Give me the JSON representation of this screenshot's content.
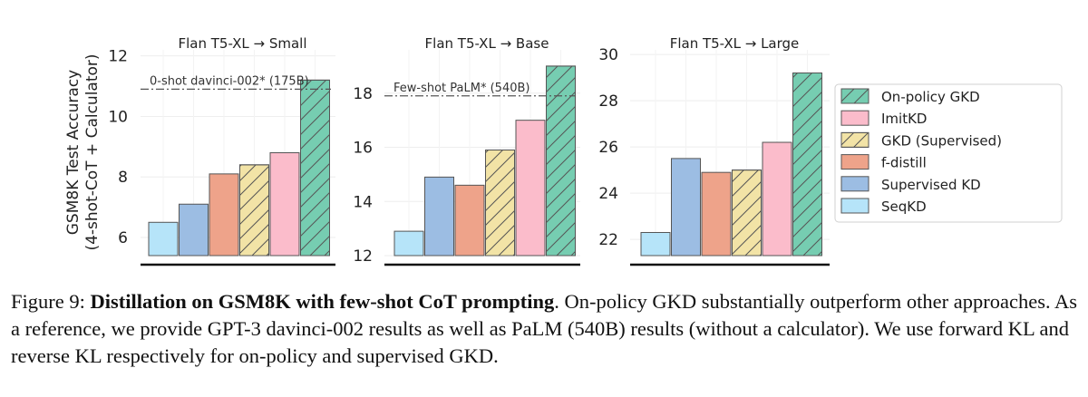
{
  "chart_data": [
    {
      "type": "bar",
      "title": "Flan T5-XL → Small",
      "ylabel": "GSM8K Test Accuracy\n(4-shot-CoT + Calculator)",
      "ylim": [
        5.4,
        12.2
      ],
      "yticks": [
        6,
        8,
        10,
        12
      ],
      "categories": [
        "SeqKD",
        "Supervised KD",
        "f-distill",
        "GKD (Supervised)",
        "ImitKD",
        "On-policy GKD"
      ],
      "values": [
        6.5,
        7.1,
        8.1,
        8.4,
        8.8,
        11.2
      ],
      "reference": {
        "label": "0-shot davinci-002* (175B)",
        "value": 10.9
      }
    },
    {
      "type": "bar",
      "title": "Flan T5-XL → Base",
      "ylabel": "",
      "ylim": [
        12.0,
        19.6
      ],
      "yticks": [
        12,
        14,
        16,
        18
      ],
      "categories": [
        "SeqKD",
        "Supervised KD",
        "f-distill",
        "GKD (Supervised)",
        "ImitKD",
        "On-policy GKD"
      ],
      "values": [
        12.9,
        14.9,
        14.6,
        15.9,
        17.0,
        19.0
      ],
      "reference": {
        "label": "Few-shot PaLM* (540B)",
        "value": 17.9
      }
    },
    {
      "type": "bar",
      "title": "Flan T5-XL → Large",
      "ylabel": "",
      "ylim": [
        21.3,
        30.2
      ],
      "yticks": [
        22,
        24,
        26,
        28,
        30
      ],
      "categories": [
        "SeqKD",
        "Supervised KD",
        "f-distill",
        "GKD (Supervised)",
        "ImitKD",
        "On-policy GKD"
      ],
      "values": [
        22.3,
        25.5,
        24.9,
        25.0,
        26.2,
        29.2
      ],
      "reference": null
    }
  ],
  "legend": [
    {
      "label": "On-policy GKD",
      "color": "#76cdb1",
      "hatch": true
    },
    {
      "label": "ImitKD",
      "color": "#fbbccb",
      "hatch": false
    },
    {
      "label": "GKD (Supervised)",
      "color": "#f2e3a6",
      "hatch": true
    },
    {
      "label": "f-distill",
      "color": "#eea38a",
      "hatch": false
    },
    {
      "label": "Supervised KD",
      "color": "#9cbde3",
      "hatch": false
    },
    {
      "label": "SeqKD",
      "color": "#b6e4f9",
      "hatch": false
    }
  ],
  "bar_colors": [
    "#b6e4f9",
    "#9cbde3",
    "#eea38a",
    "#f2e3a6",
    "#fbbccb",
    "#76cdb1"
  ],
  "bar_hatch": [
    false,
    false,
    false,
    true,
    false,
    true
  ],
  "caption": {
    "prefix": "Figure 9: ",
    "bold": "Distillation on GSM8K with few-shot CoT prompting",
    "rest": ". On-policy GKD substantially outperform other approaches. As a reference, we provide GPT-3 davinci-002 results as well as PaLM (540B) results (without a calculator). We use forward KL and reverse KL respectively for on-policy and supervised GKD."
  }
}
